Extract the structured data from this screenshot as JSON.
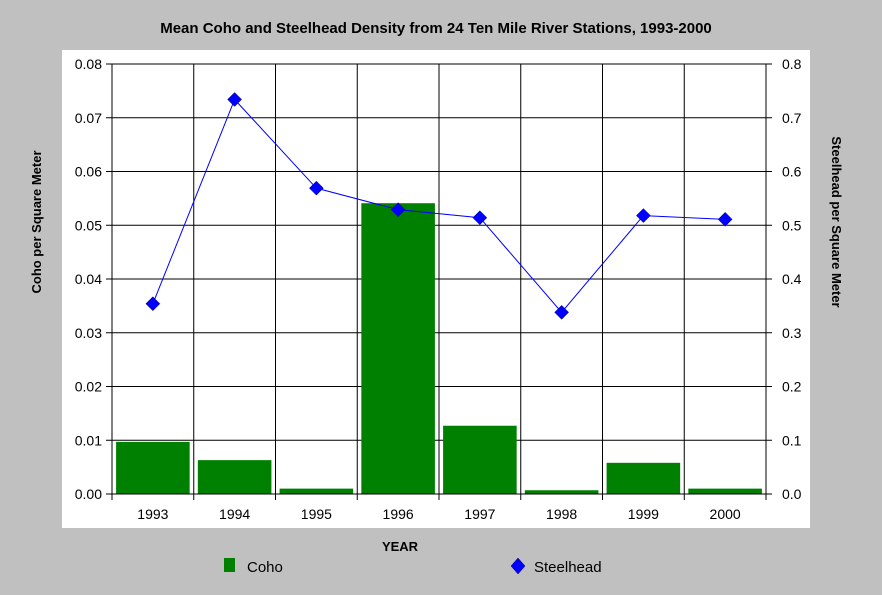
{
  "chart_data": {
    "type": "bar",
    "title": "Mean Coho and Steelhead Density from 24 Ten Mile River Stations, 1993-2000",
    "xlabel": "YEAR",
    "ylabel_left": "Coho per Square Meter",
    "ylabel_right": "Steelhead per Square Meter",
    "categories": [
      "1993",
      "1994",
      "1995",
      "1996",
      "1997",
      "1998",
      "1999",
      "2000"
    ],
    "ylim_left": [
      0,
      0.08
    ],
    "ylim_right": [
      0,
      0.8
    ],
    "yticks_left": [
      "0.00",
      "0.01",
      "0.02",
      "0.03",
      "0.04",
      "0.05",
      "0.06",
      "0.07",
      "0.08"
    ],
    "yticks_right": [
      "0.0",
      "0.1",
      "0.2",
      "0.3",
      "0.4",
      "0.5",
      "0.6",
      "0.7",
      "0.8"
    ],
    "grid": true,
    "legend_position": "bottom",
    "series": [
      {
        "name": "Coho",
        "kind": "bar",
        "axis": "left",
        "color": "#008000",
        "values": [
          0.0097,
          0.0063,
          0.001,
          0.0541,
          0.0127,
          0.0007,
          0.0058,
          0.001
        ]
      },
      {
        "name": "Steelhead",
        "kind": "line",
        "axis": "right",
        "color": "#0000ff",
        "values": [
          0.354,
          0.734,
          0.569,
          0.529,
          0.514,
          0.338,
          0.518,
          0.511
        ]
      }
    ]
  }
}
